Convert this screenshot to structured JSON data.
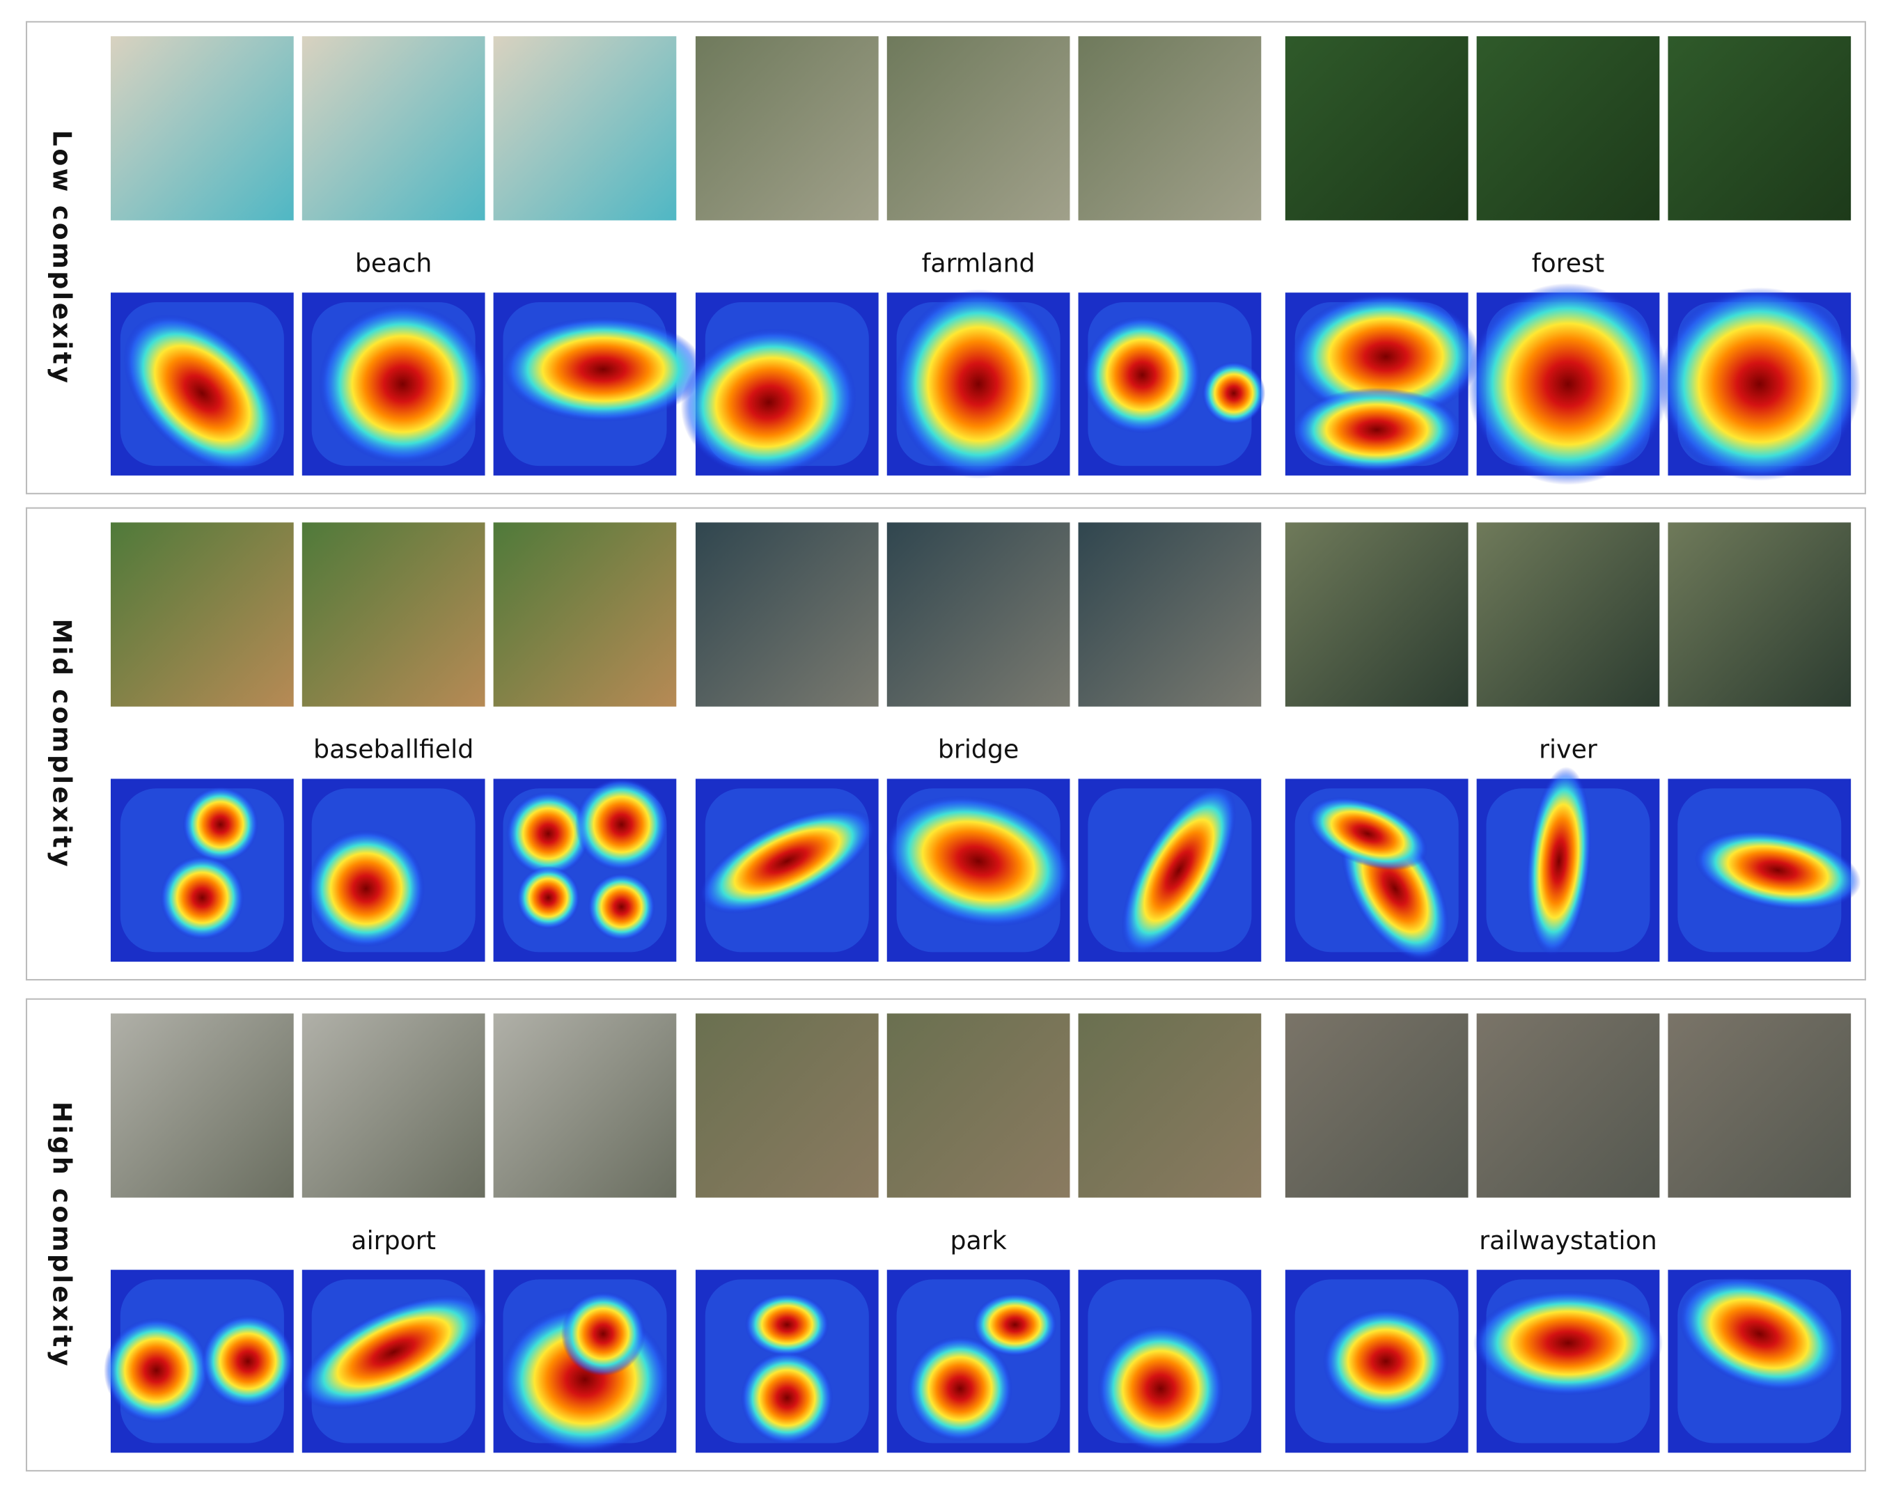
{
  "panels": [
    {
      "label": "Low complexity",
      "classes": [
        "beach",
        "farmland",
        "forest"
      ]
    },
    {
      "label": "Mid complexity",
      "classes": [
        "baseballfield",
        "bridge",
        "river"
      ]
    },
    {
      "label": "High complexity",
      "classes": [
        "airport",
        "park",
        "railwaystation"
      ]
    }
  ]
}
